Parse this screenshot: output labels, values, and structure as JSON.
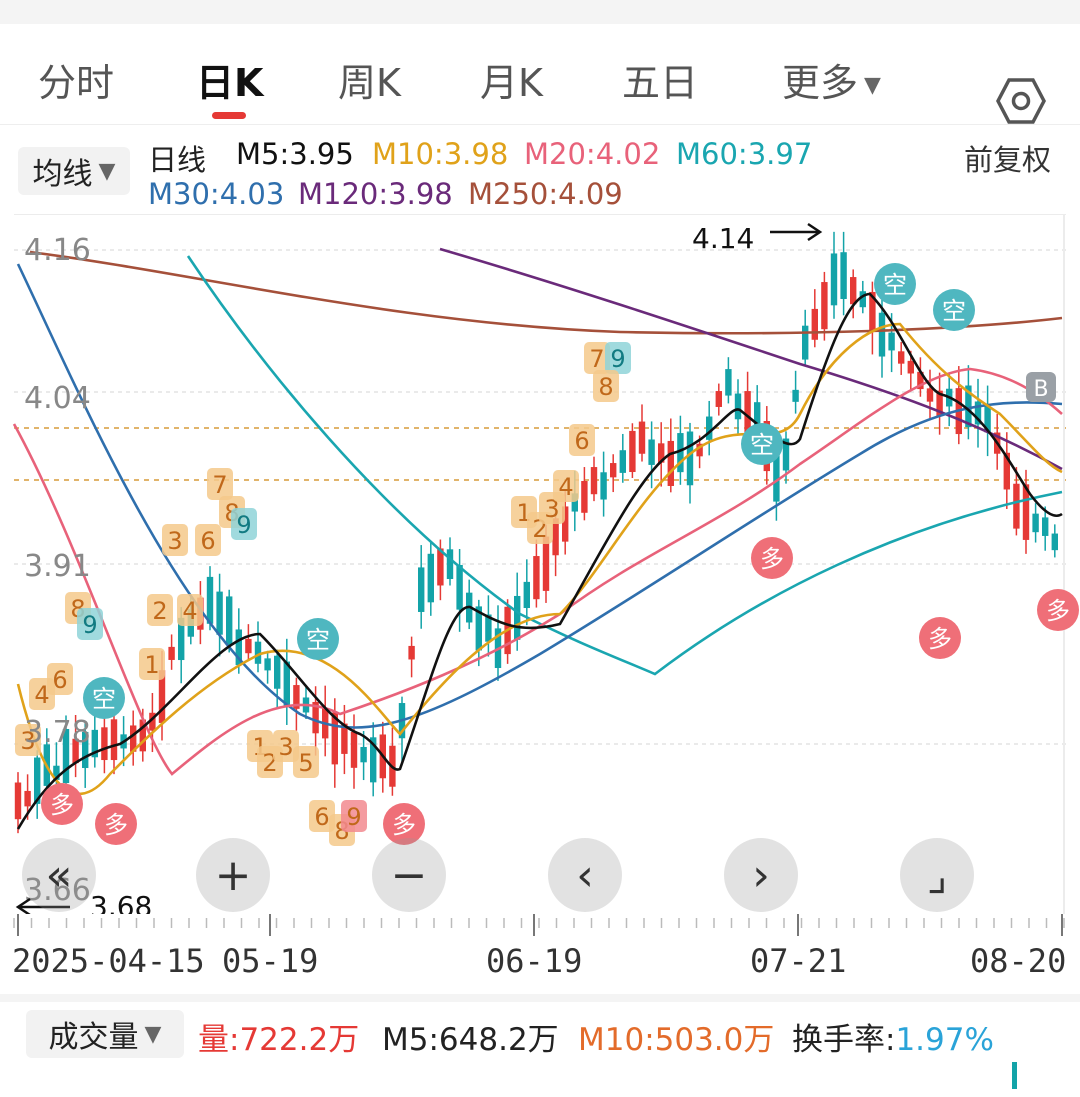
{
  "tabs": [
    {
      "label": "分时",
      "active": false
    },
    {
      "label": "日K",
      "active": true
    },
    {
      "label": "周K",
      "active": false
    },
    {
      "label": "月K",
      "active": false
    },
    {
      "label": "五日",
      "active": false
    },
    {
      "label": "更多",
      "active": false
    }
  ],
  "settings_icon": "hexagon-gear-icon",
  "legend": {
    "dropdown": "均线",
    "period": "日线",
    "ma": [
      {
        "label": "M5:3.95",
        "color": "#111111"
      },
      {
        "label": "M10:3.98",
        "color": "#e0a21a"
      },
      {
        "label": "M20:4.02",
        "color": "#e8627a"
      },
      {
        "label": "M60:3.97",
        "color": "#1aa6b0"
      },
      {
        "label": "M30:4.03",
        "color": "#2f6fad"
      },
      {
        "label": "M120:3.98",
        "color": "#6a2a7a"
      },
      {
        "label": "M250:4.09",
        "color": "#a5503a"
      }
    ],
    "adjust": "前复权"
  },
  "chart": {
    "price_labels": [
      "4.16",
      "4.04",
      "3.91",
      "3.78",
      "3.66"
    ],
    "high_label": "4.14",
    "low_label": "3.68",
    "dates": [
      "2025-04-15",
      "05-19",
      "06-19",
      "07-21",
      "08-20"
    ],
    "signals": {
      "empty": "空",
      "more": "多",
      "b": "B"
    }
  },
  "controls": [
    "«",
    "+",
    "−",
    "‹",
    "›",
    "⌟"
  ],
  "volume": {
    "dropdown": "成交量",
    "vol_prefix": "量",
    "vol_value": ":722.2万",
    "m5": "M5:648.2万",
    "m10": "M10:503.0万",
    "turnover_label": "换手率:",
    "turnover_value": "1.97%"
  },
  "colors": {
    "up": "#e53935",
    "down": "#13a3a8",
    "accent": "#e53935"
  }
}
